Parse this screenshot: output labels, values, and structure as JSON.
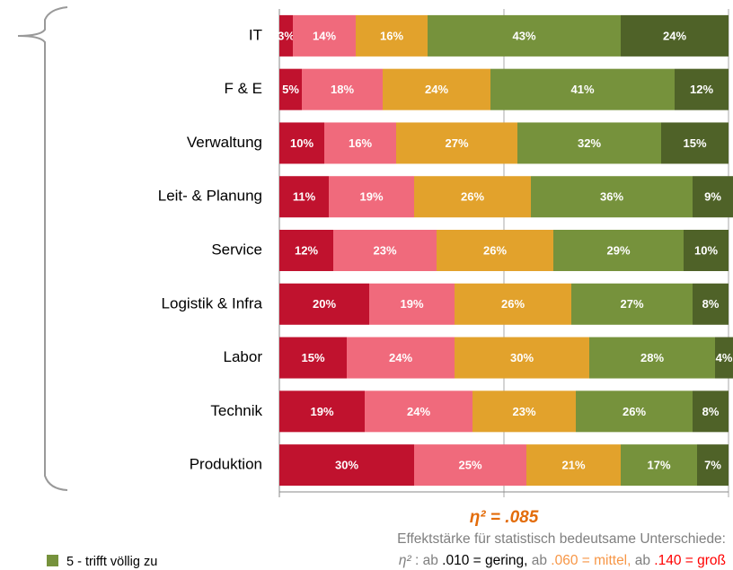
{
  "chart_data": {
    "type": "stacked_bar_horizontal",
    "categories": [
      "IT",
      "F & E",
      "Verwaltung",
      "Leit- & Planung",
      "Service",
      "Logistik & Infra",
      "Labor",
      "Technik",
      "Produktion"
    ],
    "series": [
      {
        "color": "#c0122e",
        "values": [
          3,
          5,
          10,
          11,
          12,
          20,
          15,
          19,
          30
        ],
        "value_labels": [
          "3%",
          "5%",
          "10%",
          "11%",
          "12%",
          "20%",
          "15%",
          "19%",
          "30%"
        ]
      },
      {
        "color": "#f06a7c",
        "values": [
          14,
          18,
          16,
          19,
          23,
          19,
          24,
          24,
          25
        ],
        "value_labels": [
          "14%",
          "18%",
          "16%",
          "19%",
          "23%",
          "19%",
          "24%",
          "24%",
          "25%"
        ]
      },
      {
        "color": "#e2a22c",
        "values": [
          16,
          24,
          27,
          26,
          26,
          26,
          30,
          23,
          21
        ],
        "value_labels": [
          "16%",
          "24%",
          "27%",
          "26%",
          "26%",
          "26%",
          "30%",
          "23%",
          "21%"
        ]
      },
      {
        "name": "5 - trifft völlig zu",
        "color": "#76923c",
        "values": [
          43,
          41,
          32,
          36,
          29,
          27,
          28,
          26,
          17
        ],
        "value_labels": [
          "43%",
          "41%",
          "32%",
          "36%",
          "29%",
          "27%",
          "28%",
          "26%",
          "17%"
        ]
      },
      {
        "color": "#4f6228",
        "values": [
          24,
          12,
          15,
          9,
          10,
          8,
          4,
          8,
          7
        ],
        "value_labels": [
          "24%",
          "12%",
          "15%",
          "9%",
          "10%",
          "8%",
          "4%",
          "8%",
          "7%"
        ]
      }
    ],
    "xlim": [
      0,
      100
    ],
    "xticks": [
      0,
      50,
      100
    ],
    "grid": true,
    "annotation": {
      "text": "η² = .085",
      "color": "#e36c0a"
    },
    "effect_note": "Effektstärke für statistisch bedeutsame Unterschiede:",
    "effect_scale": [
      {
        "text": "η²",
        "color": "#7f7f7f"
      },
      {
        "text": " : ab ",
        "color": "#7f7f7f"
      },
      {
        "text": ".010 = gering,",
        "color": "#000000"
      },
      {
        "text": " ab ",
        "color": "#7f7f7f"
      },
      {
        "text": ".060 = mittel,",
        "color": "#f79646"
      },
      {
        "text": " ab ",
        "color": "#7f7f7f"
      },
      {
        "text": ".140 = groß",
        "color": "#ff0000"
      }
    ]
  }
}
